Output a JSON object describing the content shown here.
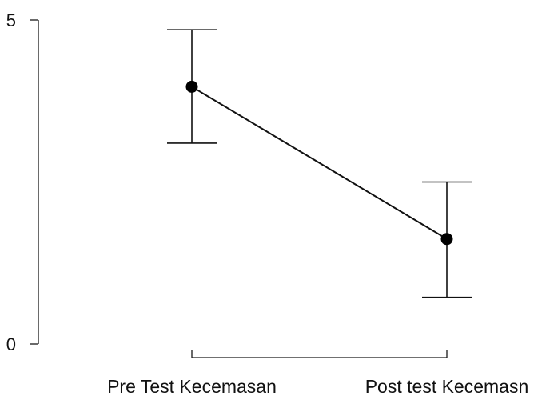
{
  "chart_data": {
    "type": "line",
    "categories": [
      "Pre Test Kecemasan",
      "Post test Kecemasn"
    ],
    "values": [
      3.97,
      1.62
    ],
    "error_lower": [
      3.1,
      0.72
    ],
    "error_upper": [
      4.85,
      2.5
    ],
    "ylim": [
      0,
      5
    ],
    "yticks": [
      "0",
      "5"
    ],
    "grid": false,
    "legend": "none",
    "colors": {
      "series": "#111111",
      "axis": "#1a1a1a"
    }
  }
}
